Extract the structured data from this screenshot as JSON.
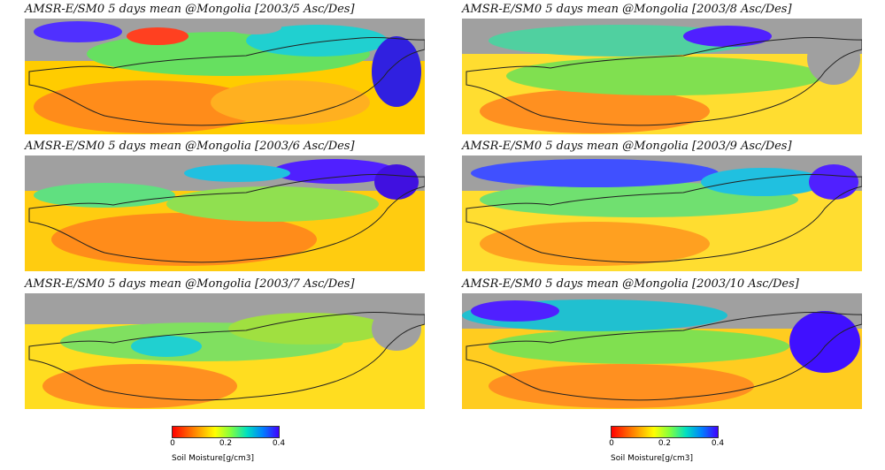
{
  "panels": [
    {
      "title": "AMSR-E/SM0 5 days mean @Mongolia [2003/5 Asc/Des]"
    },
    {
      "title": "AMSR-E/SM0 5 days mean @Mongolia [2003/8 Asc/Des]"
    },
    {
      "title": "AMSR-E/SM0 5 days mean @Mongolia [2003/6 Asc/Des]"
    },
    {
      "title": "AMSR-E/SM0 5 days mean @Mongolia [2003/9 Asc/Des]"
    },
    {
      "title": "AMSR-E/SM0 5 days mean @Mongolia [2003/7 Asc/Des]"
    },
    {
      "title": "AMSR-E/SM0 5 days mean @Mongolia [2003/10 Asc/Des]"
    }
  ],
  "colorbar": {
    "ticks": [
      "0",
      "0.2",
      "0.4"
    ],
    "label": "Soil Moisture[g/cm3]",
    "colors": [
      "#ff0000",
      "#ff8000",
      "#ffff00",
      "#80ff40",
      "#00e0c0",
      "#0080ff",
      "#4000ff"
    ]
  }
}
